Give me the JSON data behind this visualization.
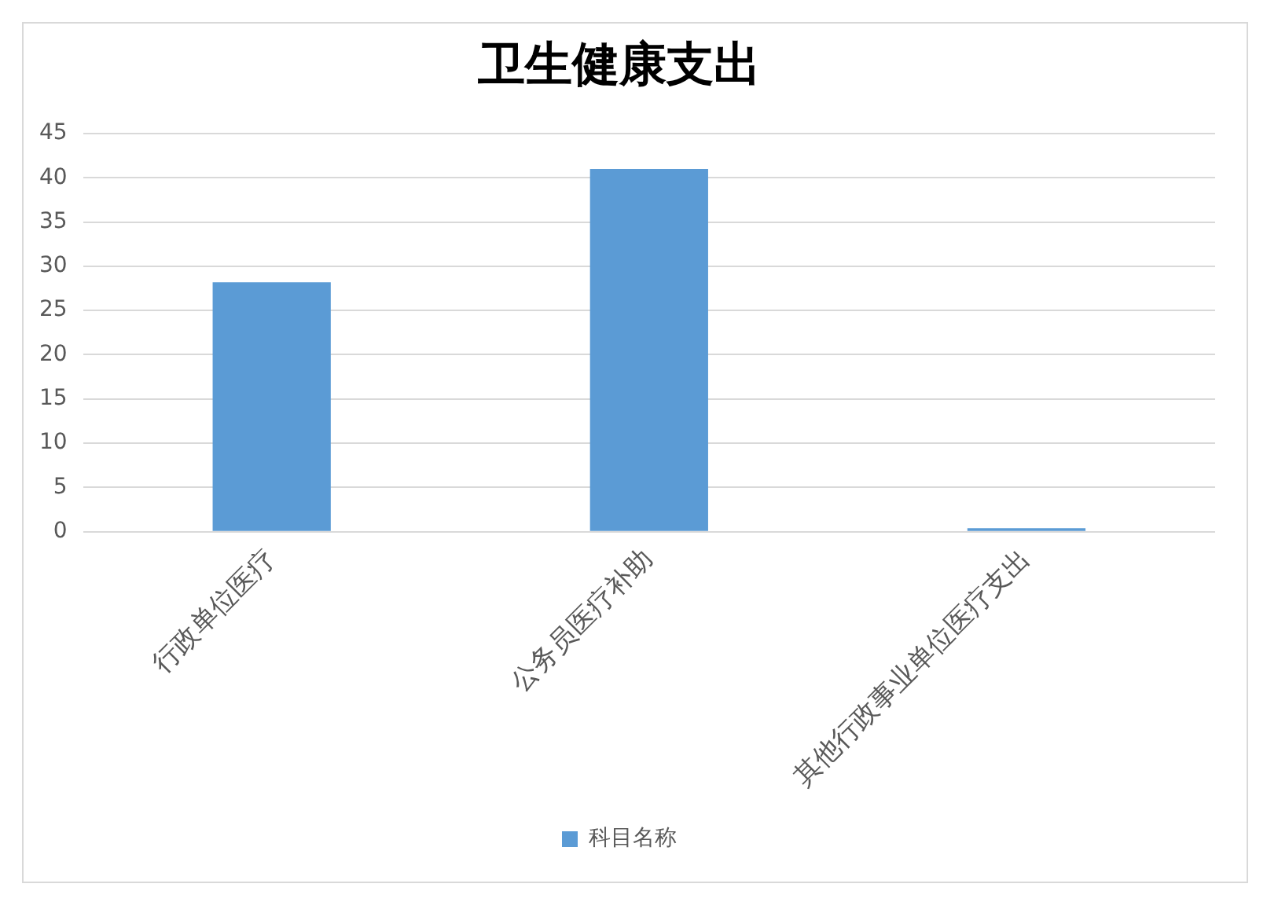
{
  "chart_data": {
    "type": "bar",
    "title": "卫生健康支出",
    "categories": [
      "行政单位医疗",
      "公务员医疗补助",
      "其他行政事业单位医疗支出"
    ],
    "series": [
      {
        "name": "科目名称",
        "color": "#5b9bd5",
        "values": [
          28.2,
          41,
          0.4
        ]
      }
    ],
    "ylim": [
      0,
      45
    ],
    "yticks": [
      0,
      5,
      10,
      15,
      20,
      25,
      30,
      35,
      40,
      45
    ],
    "grid": "y",
    "legend": "bottom"
  }
}
